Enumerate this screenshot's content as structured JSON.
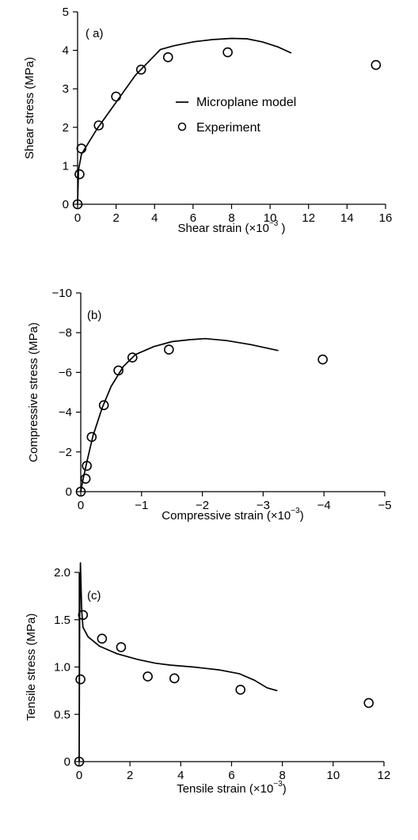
{
  "chart_data": [
    {
      "type": "line",
      "panel_label": "( a)",
      "xlabel": "Shear strain (×10",
      "xlabel_exp": "−3",
      "xlabel_suffix": " )",
      "ylabel": "Shear stress (MPa)",
      "xlim": [
        0,
        16
      ],
      "ylim": [
        0,
        5
      ],
      "x_ticks": [
        0,
        2,
        4,
        6,
        8,
        10,
        12,
        14,
        16
      ],
      "y_ticks": [
        0,
        1,
        2,
        3,
        4,
        5
      ],
      "legend": {
        "placement": "center-right",
        "line_label": "Microplane model",
        "marker_label": "Experiment"
      },
      "series": [
        {
          "name": "Microplane model",
          "style": "line",
          "x": [
            0,
            0.05,
            0.2,
            1.0,
            2.0,
            3.0,
            4.3,
            5.0,
            6.0,
            7.0,
            8.0,
            8.8,
            9.6,
            10.4,
            11.1
          ],
          "y": [
            0,
            0.9,
            1.3,
            1.95,
            2.65,
            3.35,
            4.02,
            4.12,
            4.22,
            4.28,
            4.31,
            4.3,
            4.22,
            4.09,
            3.93
          ]
        },
        {
          "name": "Experiment",
          "style": "marker",
          "x": [
            0,
            0.1,
            0.2,
            1.1,
            2.0,
            3.3,
            4.7,
            7.8,
            15.5
          ],
          "y": [
            0,
            0.78,
            1.45,
            2.05,
            2.8,
            3.5,
            3.82,
            3.95,
            3.62
          ]
        }
      ]
    },
    {
      "type": "line",
      "panel_label": "(b)",
      "xlabel": "Compressive strain  (×10",
      "xlabel_exp": "−3",
      "xlabel_suffix": ")",
      "ylabel": "Compressive stress (MPa)",
      "xlim": [
        0,
        -5
      ],
      "ylim": [
        0,
        -10
      ],
      "x_ticks": [
        0,
        -1,
        -2,
        -3,
        -4,
        -5
      ],
      "y_ticks": [
        0,
        -2,
        -4,
        -6,
        -8,
        -10
      ],
      "series": [
        {
          "name": "Microplane model",
          "style": "line",
          "x": [
            0,
            -0.03,
            -0.1,
            -0.2,
            -0.35,
            -0.5,
            -0.7,
            -0.9,
            -1.2,
            -1.5,
            -1.8,
            -2.05,
            -2.4,
            -2.8,
            -3.25
          ],
          "y": [
            0,
            -0.5,
            -1.5,
            -2.8,
            -4.2,
            -5.3,
            -6.3,
            -6.9,
            -7.3,
            -7.55,
            -7.65,
            -7.7,
            -7.6,
            -7.4,
            -7.1
          ]
        },
        {
          "name": "Experiment",
          "style": "marker",
          "x": [
            0,
            -0.08,
            -0.1,
            -0.18,
            -0.38,
            -0.62,
            -0.85,
            -1.45,
            -3.98
          ],
          "y": [
            0,
            -0.65,
            -1.3,
            -2.75,
            -4.35,
            -6.1,
            -6.75,
            -7.15,
            -6.65
          ]
        }
      ]
    },
    {
      "type": "line",
      "panel_label": "(c)",
      "xlabel": "Tensile strain (×10",
      "xlabel_exp": "−3",
      "xlabel_suffix": ")",
      "ylabel": "Tensile stress (MPa)",
      "xlim": [
        0,
        12
      ],
      "ylim": [
        0,
        2.0
      ],
      "x_ticks": [
        0,
        2,
        4,
        6,
        8,
        10,
        12
      ],
      "y_ticks": [
        0,
        0.5,
        1.0,
        1.5,
        2.0
      ],
      "y_tick_labels": [
        "0",
        "0.5",
        "1.0",
        "1.5",
        "2.0"
      ],
      "series": [
        {
          "name": "Microplane model",
          "style": "line",
          "x": [
            0,
            0.02,
            0.05,
            0.1,
            0.15,
            0.35,
            0.8,
            1.5,
            2.3,
            3.0,
            3.6,
            4.5,
            5.5,
            6.3,
            6.9,
            7.4,
            7.8
          ],
          "y": [
            0,
            1.5,
            2.1,
            1.6,
            1.42,
            1.32,
            1.22,
            1.14,
            1.08,
            1.04,
            1.02,
            1.0,
            0.97,
            0.93,
            0.86,
            0.78,
            0.75
          ]
        },
        {
          "name": "Experiment",
          "style": "marker",
          "x": [
            0,
            0.05,
            0.15,
            0.9,
            1.65,
            2.7,
            3.75,
            6.35,
            11.4
          ],
          "y": [
            0,
            0.87,
            1.55,
            1.3,
            1.21,
            0.9,
            0.88,
            0.76,
            0.62
          ]
        }
      ]
    }
  ]
}
